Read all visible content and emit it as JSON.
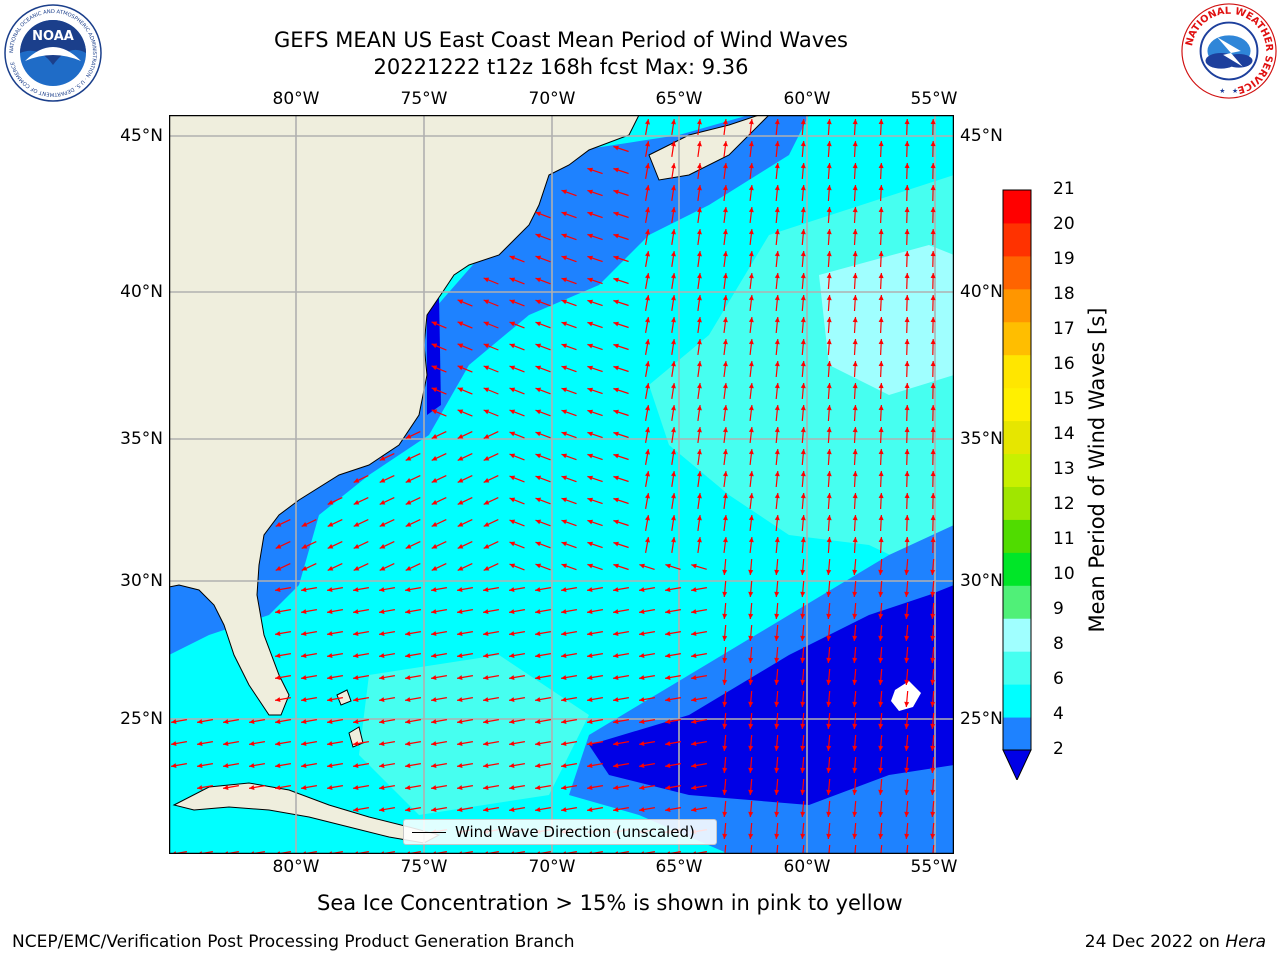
{
  "title": {
    "line1": "GEFS MEAN US East Coast Mean Period of Wind Waves",
    "line2": "20221222 t12z 168h fcst   Max: 9.36"
  },
  "map": {
    "extent": {
      "lon_min": -84.9,
      "lon_max": -54.2,
      "lat_min": 20.5,
      "lat_max": 45.8
    },
    "grid_lons": [
      -80,
      -75,
      -70,
      -65,
      -60,
      -55
    ],
    "grid_lats": [
      45,
      40,
      35,
      30,
      25
    ],
    "lon_labels": [
      "80°W",
      "75°W",
      "70°W",
      "65°W",
      "60°W",
      "55°W"
    ],
    "lat_labels": [
      "45°N",
      "40°N",
      "35°N",
      "30°N",
      "25°N"
    ],
    "colors": {
      "land": "#efeedd",
      "grid": "#b0b0b0",
      "arrow": "#ff0000",
      "band_2_4": "#1e82ff",
      "band_4_6": "#00ffff",
      "band_6_8": "#46fff0",
      "band_8_9": "#a0ffff",
      "below_2": "#0000e6"
    }
  },
  "colorbar": {
    "label": "Mean Period of Wind Waves [s]",
    "ticks": [
      "21",
      "20",
      "19",
      "18",
      "17",
      "16",
      "15",
      "14",
      "13",
      "12",
      "11",
      "10",
      "9",
      "8",
      "6",
      "4",
      "2"
    ],
    "levels": [
      2,
      4,
      6,
      8,
      9,
      10,
      11,
      12,
      13,
      14,
      15,
      16,
      17,
      18,
      19,
      20,
      21
    ],
    "colors": [
      "#1e82ff",
      "#00ffff",
      "#46fff0",
      "#a0ffff",
      "#50f078",
      "#00e628",
      "#50dc00",
      "#a0e600",
      "#c8f000",
      "#e6e600",
      "#fff000",
      "#ffe600",
      "#ffbe00",
      "#ff9600",
      "#ff6400",
      "#ff3200",
      "#ff0000"
    ],
    "extend_low_color": "#0000e6"
  },
  "legend": {
    "label": "Wind Wave Direction (unscaled)"
  },
  "ice_note": "Sea Ice Concentration > 15% is shown in pink to yellow",
  "footer": {
    "left": "NCEP/EMC/Verification Post Processing Product Generation Branch",
    "date": "24 Dec 2022 on ",
    "host": "Hera"
  },
  "logos": {
    "noaa_text": "NOAA",
    "noaa_ring": "NATIONAL OCEANIC AND ATMOSPHERIC ADMINISTRATION · U.S. DEPARTMENT OF COMMERCE",
    "nws_ring": "NATIONAL WEATHER SERVICE"
  }
}
